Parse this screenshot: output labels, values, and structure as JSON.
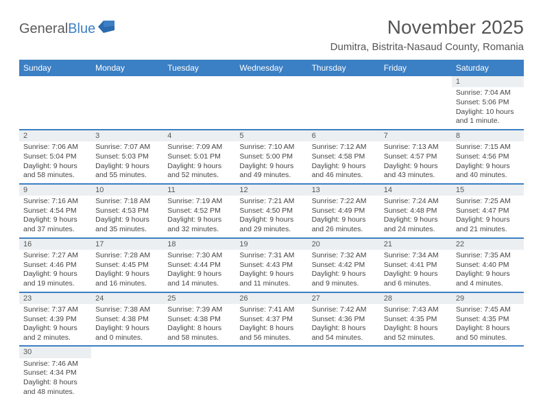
{
  "logo": {
    "word1": "General",
    "word2": "Blue"
  },
  "title": {
    "month": "November 2025",
    "location": "Dumitra, Bistrita-Nasaud County, Romania"
  },
  "colors": {
    "header_bg": "#3b7fc4",
    "header_text": "#ffffff",
    "daynum_bg": "#eceff1",
    "row_border": "#3b7fc4",
    "body_text": "#444444",
    "title_text": "#555555",
    "logo_gray": "#5a5a5a",
    "logo_blue": "#3b7fc4"
  },
  "weekdays": [
    "Sunday",
    "Monday",
    "Tuesday",
    "Wednesday",
    "Thursday",
    "Friday",
    "Saturday"
  ],
  "calendar": {
    "type": "table",
    "columns": 7,
    "rows": [
      [
        null,
        null,
        null,
        null,
        null,
        null,
        {
          "n": "1",
          "sr": "Sunrise: 7:04 AM",
          "ss": "Sunset: 5:06 PM",
          "d1": "Daylight: 10 hours",
          "d2": "and 1 minute."
        }
      ],
      [
        {
          "n": "2",
          "sr": "Sunrise: 7:06 AM",
          "ss": "Sunset: 5:04 PM",
          "d1": "Daylight: 9 hours",
          "d2": "and 58 minutes."
        },
        {
          "n": "3",
          "sr": "Sunrise: 7:07 AM",
          "ss": "Sunset: 5:03 PM",
          "d1": "Daylight: 9 hours",
          "d2": "and 55 minutes."
        },
        {
          "n": "4",
          "sr": "Sunrise: 7:09 AM",
          "ss": "Sunset: 5:01 PM",
          "d1": "Daylight: 9 hours",
          "d2": "and 52 minutes."
        },
        {
          "n": "5",
          "sr": "Sunrise: 7:10 AM",
          "ss": "Sunset: 5:00 PM",
          "d1": "Daylight: 9 hours",
          "d2": "and 49 minutes."
        },
        {
          "n": "6",
          "sr": "Sunrise: 7:12 AM",
          "ss": "Sunset: 4:58 PM",
          "d1": "Daylight: 9 hours",
          "d2": "and 46 minutes."
        },
        {
          "n": "7",
          "sr": "Sunrise: 7:13 AM",
          "ss": "Sunset: 4:57 PM",
          "d1": "Daylight: 9 hours",
          "d2": "and 43 minutes."
        },
        {
          "n": "8",
          "sr": "Sunrise: 7:15 AM",
          "ss": "Sunset: 4:56 PM",
          "d1": "Daylight: 9 hours",
          "d2": "and 40 minutes."
        }
      ],
      [
        {
          "n": "9",
          "sr": "Sunrise: 7:16 AM",
          "ss": "Sunset: 4:54 PM",
          "d1": "Daylight: 9 hours",
          "d2": "and 37 minutes."
        },
        {
          "n": "10",
          "sr": "Sunrise: 7:18 AM",
          "ss": "Sunset: 4:53 PM",
          "d1": "Daylight: 9 hours",
          "d2": "and 35 minutes."
        },
        {
          "n": "11",
          "sr": "Sunrise: 7:19 AM",
          "ss": "Sunset: 4:52 PM",
          "d1": "Daylight: 9 hours",
          "d2": "and 32 minutes."
        },
        {
          "n": "12",
          "sr": "Sunrise: 7:21 AM",
          "ss": "Sunset: 4:50 PM",
          "d1": "Daylight: 9 hours",
          "d2": "and 29 minutes."
        },
        {
          "n": "13",
          "sr": "Sunrise: 7:22 AM",
          "ss": "Sunset: 4:49 PM",
          "d1": "Daylight: 9 hours",
          "d2": "and 26 minutes."
        },
        {
          "n": "14",
          "sr": "Sunrise: 7:24 AM",
          "ss": "Sunset: 4:48 PM",
          "d1": "Daylight: 9 hours",
          "d2": "and 24 minutes."
        },
        {
          "n": "15",
          "sr": "Sunrise: 7:25 AM",
          "ss": "Sunset: 4:47 PM",
          "d1": "Daylight: 9 hours",
          "d2": "and 21 minutes."
        }
      ],
      [
        {
          "n": "16",
          "sr": "Sunrise: 7:27 AM",
          "ss": "Sunset: 4:46 PM",
          "d1": "Daylight: 9 hours",
          "d2": "and 19 minutes."
        },
        {
          "n": "17",
          "sr": "Sunrise: 7:28 AM",
          "ss": "Sunset: 4:45 PM",
          "d1": "Daylight: 9 hours",
          "d2": "and 16 minutes."
        },
        {
          "n": "18",
          "sr": "Sunrise: 7:30 AM",
          "ss": "Sunset: 4:44 PM",
          "d1": "Daylight: 9 hours",
          "d2": "and 14 minutes."
        },
        {
          "n": "19",
          "sr": "Sunrise: 7:31 AM",
          "ss": "Sunset: 4:43 PM",
          "d1": "Daylight: 9 hours",
          "d2": "and 11 minutes."
        },
        {
          "n": "20",
          "sr": "Sunrise: 7:32 AM",
          "ss": "Sunset: 4:42 PM",
          "d1": "Daylight: 9 hours",
          "d2": "and 9 minutes."
        },
        {
          "n": "21",
          "sr": "Sunrise: 7:34 AM",
          "ss": "Sunset: 4:41 PM",
          "d1": "Daylight: 9 hours",
          "d2": "and 6 minutes."
        },
        {
          "n": "22",
          "sr": "Sunrise: 7:35 AM",
          "ss": "Sunset: 4:40 PM",
          "d1": "Daylight: 9 hours",
          "d2": "and 4 minutes."
        }
      ],
      [
        {
          "n": "23",
          "sr": "Sunrise: 7:37 AM",
          "ss": "Sunset: 4:39 PM",
          "d1": "Daylight: 9 hours",
          "d2": "and 2 minutes."
        },
        {
          "n": "24",
          "sr": "Sunrise: 7:38 AM",
          "ss": "Sunset: 4:38 PM",
          "d1": "Daylight: 9 hours",
          "d2": "and 0 minutes."
        },
        {
          "n": "25",
          "sr": "Sunrise: 7:39 AM",
          "ss": "Sunset: 4:38 PM",
          "d1": "Daylight: 8 hours",
          "d2": "and 58 minutes."
        },
        {
          "n": "26",
          "sr": "Sunrise: 7:41 AM",
          "ss": "Sunset: 4:37 PM",
          "d1": "Daylight: 8 hours",
          "d2": "and 56 minutes."
        },
        {
          "n": "27",
          "sr": "Sunrise: 7:42 AM",
          "ss": "Sunset: 4:36 PM",
          "d1": "Daylight: 8 hours",
          "d2": "and 54 minutes."
        },
        {
          "n": "28",
          "sr": "Sunrise: 7:43 AM",
          "ss": "Sunset: 4:35 PM",
          "d1": "Daylight: 8 hours",
          "d2": "and 52 minutes."
        },
        {
          "n": "29",
          "sr": "Sunrise: 7:45 AM",
          "ss": "Sunset: 4:35 PM",
          "d1": "Daylight: 8 hours",
          "d2": "and 50 minutes."
        }
      ],
      [
        {
          "n": "30",
          "sr": "Sunrise: 7:46 AM",
          "ss": "Sunset: 4:34 PM",
          "d1": "Daylight: 8 hours",
          "d2": "and 48 minutes."
        },
        null,
        null,
        null,
        null,
        null,
        null
      ]
    ]
  }
}
